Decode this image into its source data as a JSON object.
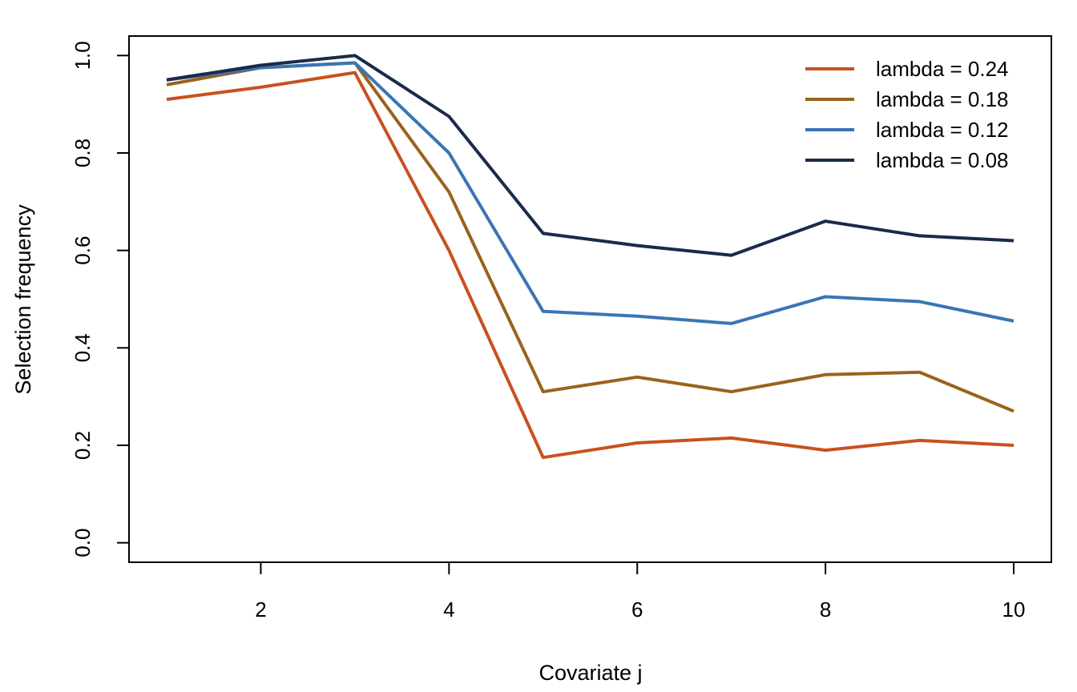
{
  "chart_data": {
    "type": "line",
    "xlabel": "Covariate j",
    "ylabel": "Selection frequency",
    "x": [
      1,
      2,
      3,
      4,
      5,
      6,
      7,
      8,
      9,
      10
    ],
    "xlim": [
      0.6,
      10.4
    ],
    "ylim": [
      -0.04,
      1.04
    ],
    "xticks": [
      2,
      4,
      6,
      8,
      10
    ],
    "yticks": [
      0.0,
      0.2,
      0.4,
      0.6,
      0.8,
      1.0
    ],
    "xtick_labels": [
      "2",
      "4",
      "6",
      "8",
      "10"
    ],
    "ytick_labels": [
      "0.0",
      "0.2",
      "0.4",
      "0.6",
      "0.8",
      "1.0"
    ],
    "grid": false,
    "legend_position": "top-right",
    "series": [
      {
        "name": "lambda = 0.24",
        "color": "#C8511F",
        "values": [
          0.91,
          0.935,
          0.965,
          0.6,
          0.175,
          0.205,
          0.215,
          0.19,
          0.21,
          0.2
        ]
      },
      {
        "name": "lambda = 0.18",
        "color": "#9A621B",
        "values": [
          0.94,
          0.975,
          0.985,
          0.72,
          0.31,
          0.34,
          0.31,
          0.345,
          0.35,
          0.27
        ]
      },
      {
        "name": "lambda = 0.12",
        "color": "#3A75B4",
        "values": [
          0.95,
          0.975,
          0.985,
          0.8,
          0.475,
          0.465,
          0.45,
          0.505,
          0.495,
          0.455
        ]
      },
      {
        "name": "lambda = 0.08",
        "color": "#1A2A4A",
        "values": [
          0.95,
          0.98,
          1.0,
          0.875,
          0.635,
          0.61,
          0.59,
          0.66,
          0.63,
          0.62
        ]
      }
    ]
  }
}
